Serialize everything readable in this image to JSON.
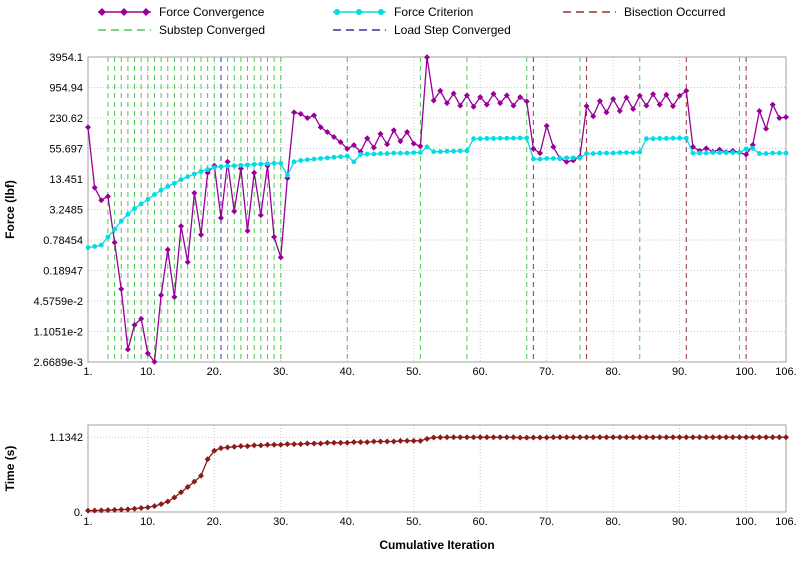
{
  "legend": {
    "items": [
      {
        "label": "Force Convergence",
        "type": "line-diamond",
        "color_key": "force_convergence"
      },
      {
        "label": "Force Criterion",
        "type": "line-circle",
        "color_key": "force_criterion"
      },
      {
        "label": "Bisection Occurred",
        "type": "dashed",
        "color_key": "bisection"
      },
      {
        "label": "Substep Converged",
        "type": "dashed",
        "color_key": "substep"
      },
      {
        "label": "Load Step Converged",
        "type": "dashed",
        "color_key": "loadstep"
      }
    ]
  },
  "colors": {
    "force_convergence": "#990099",
    "force_criterion": "#00DDE6",
    "bisection": "#993333",
    "substep": "#4CC552",
    "loadstep": "#333399",
    "time_series": "#8B1A1A",
    "grid": "#C9C9C9",
    "frame": "#A0A0A0",
    "text": "#000000"
  },
  "chart_data": [
    {
      "type": "line",
      "title": "Force convergence history",
      "xlabel": "Cumulative Iteration",
      "ylabel": "Force (lbf)",
      "y_scale": "log",
      "x_range": [
        1,
        106
      ],
      "y_ticks": [
        3954.1,
        954.94,
        230.62,
        55.697,
        13.451,
        3.2485,
        0.78454,
        0.18947,
        0.045759,
        0.011051,
        0.0026689
      ],
      "y_tick_labels": [
        "3954.1",
        "954.94",
        "230.62",
        "55.697",
        "13.451",
        "3.2485",
        "0.78454",
        "0.18947",
        "4.5759e-2",
        "1.1051e-2",
        "2.6689e-3"
      ],
      "x_ticks": [
        1,
        10,
        20,
        30,
        40,
        50,
        60,
        70,
        80,
        90,
        100,
        106
      ],
      "x_tick_labels": [
        "1.",
        "10.",
        "20.",
        "30.",
        "40.",
        "50.",
        "60.",
        "70.",
        "80.",
        "90.",
        "100.",
        "106."
      ],
      "grid": true,
      "legend_position": "top",
      "series": [
        {
          "name": "Force Convergence",
          "color_key": "force_convergence",
          "marker": "diamond",
          "values": [
            150,
            9,
            5,
            6,
            0.7,
            0.08,
            0.0048,
            0.015,
            0.02,
            0.004,
            0.0027,
            0.06,
            0.5,
            0.055,
            1.5,
            0.28,
            7,
            1.0,
            18,
            25,
            2.2,
            30,
            3,
            22,
            1.2,
            18,
            2.5,
            25,
            0.9,
            0.35,
            14,
            300,
            280,
            230,
            260,
            150,
            120,
            95,
            75,
            55,
            65,
            48,
            90,
            58,
            110,
            68,
            130,
            78,
            120,
            70,
            62,
            3900,
            520,
            820,
            460,
            720,
            410,
            660,
            390,
            610,
            430,
            710,
            460,
            660,
            410,
            610,
            500,
            55,
            45,
            160,
            60,
            35,
            30,
            32,
            38,
            400,
            250,
            510,
            300,
            560,
            320,
            600,
            350,
            650,
            410,
            700,
            430,
            680,
            400,
            650,
            820,
            60,
            50,
            56,
            48,
            53,
            47,
            50,
            46,
            42,
            66,
            320,
            140,
            430,
            230,
            240
          ]
        },
        {
          "name": "Force Criterion",
          "color_key": "force_criterion",
          "marker": "circle",
          "values": [
            0.55,
            0.58,
            0.62,
            0.9,
            1.3,
            1.9,
            2.6,
            3.4,
            4.2,
            5.2,
            6.5,
            8,
            9.5,
            11,
            13,
            15,
            17,
            19,
            21,
            23,
            24,
            24.5,
            25,
            25.5,
            26,
            26.5,
            27,
            27.5,
            28,
            28,
            16,
            30,
            32,
            33,
            34,
            35,
            36,
            37,
            38,
            39,
            30,
            42,
            43,
            43,
            44,
            44,
            45,
            45,
            45,
            46,
            46,
            60,
            48,
            48,
            49,
            49,
            50,
            50,
            88,
            88,
            89,
            89,
            90,
            90,
            90,
            91,
            91,
            34,
            34,
            35,
            35,
            35,
            36,
            36,
            36,
            44,
            44,
            45,
            45,
            45,
            46,
            46,
            46,
            47,
            88,
            88,
            89,
            89,
            90,
            90,
            90,
            45,
            45,
            45,
            46,
            46,
            46,
            46,
            46,
            55,
            56,
            44,
            44,
            45,
            45,
            45
          ]
        }
      ],
      "event_lines": [
        {
          "name": "Substep Converged",
          "color_key": "substep",
          "x": [
            4,
            5,
            6,
            7,
            8,
            9,
            10,
            11,
            12,
            13,
            14,
            15,
            16,
            17,
            18,
            19,
            20,
            22,
            23,
            24,
            25,
            26,
            27,
            28,
            29,
            30,
            40,
            51,
            58,
            67,
            75,
            84,
            99
          ]
        },
        {
          "name": "Load Step Converged",
          "color_key": "loadstep",
          "x": [
            21
          ]
        },
        {
          "name": "Bisection Occurred",
          "color_key": "bisection",
          "x": [
            68,
            76,
            91,
            100
          ]
        }
      ]
    },
    {
      "type": "line",
      "title": "Cumulative time history",
      "xlabel": "Cumulative Iteration",
      "ylabel": "Time (s)",
      "y_scale": "linear",
      "x_range": [
        1,
        106
      ],
      "y_range": [
        0,
        1.32
      ],
      "y_ticks": [
        0,
        1.1342
      ],
      "y_tick_labels": [
        "0.",
        "1.1342"
      ],
      "x_ticks": [
        1,
        10,
        20,
        30,
        40,
        50,
        60,
        70,
        80,
        90,
        100,
        106
      ],
      "x_tick_labels": [
        "1.",
        "10.",
        "20.",
        "30.",
        "40.",
        "50.",
        "60.",
        "70.",
        "80.",
        "90.",
        "100.",
        "106."
      ],
      "grid": true,
      "series": [
        {
          "name": "Time",
          "color_key": "time_series",
          "marker": "diamond",
          "values": [
            0.02,
            0.022,
            0.025,
            0.028,
            0.032,
            0.036,
            0.04,
            0.05,
            0.06,
            0.07,
            0.09,
            0.12,
            0.16,
            0.22,
            0.3,
            0.38,
            0.46,
            0.55,
            0.8,
            0.93,
            0.97,
            0.98,
            0.99,
            1.0,
            1.0,
            1.01,
            1.01,
            1.02,
            1.02,
            1.02,
            1.03,
            1.03,
            1.03,
            1.04,
            1.04,
            1.04,
            1.05,
            1.05,
            1.05,
            1.05,
            1.06,
            1.06,
            1.06,
            1.07,
            1.07,
            1.07,
            1.07,
            1.08,
            1.08,
            1.08,
            1.08,
            1.11,
            1.13,
            1.132,
            1.134,
            1.134,
            1.134,
            1.134,
            1.134,
            1.134,
            1.134,
            1.134,
            1.134,
            1.134,
            1.134,
            1.128,
            1.128,
            1.13,
            1.13,
            1.13,
            1.134,
            1.134,
            1.134,
            1.134,
            1.134,
            1.1342,
            1.1342,
            1.1342,
            1.1342,
            1.1342,
            1.1342,
            1.1342,
            1.1342,
            1.1342,
            1.1342,
            1.1342,
            1.1342,
            1.1342,
            1.1342,
            1.1342,
            1.1342,
            1.1342,
            1.1342,
            1.1342,
            1.1342,
            1.1342,
            1.1342,
            1.1342,
            1.1342,
            1.1342,
            1.1342,
            1.1342,
            1.1342,
            1.1342,
            1.1342,
            1.1342
          ]
        }
      ],
      "event_lines": []
    }
  ]
}
